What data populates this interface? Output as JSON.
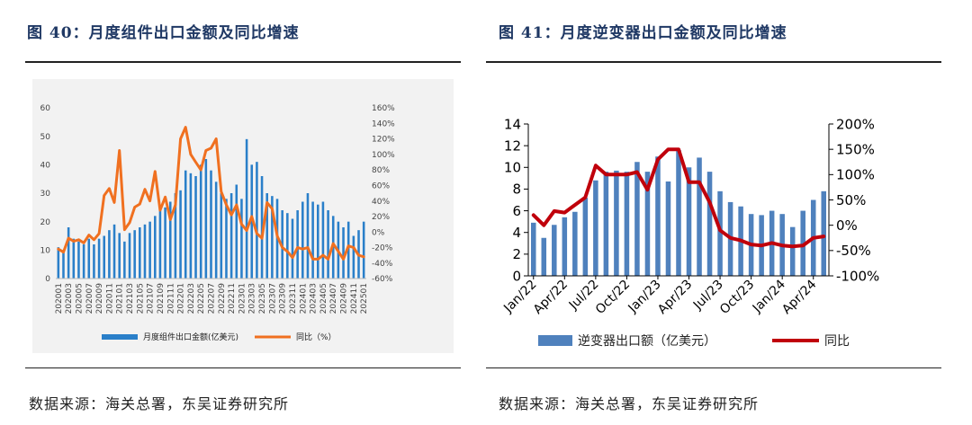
{
  "left": {
    "title": "图 40：月度组件出口金额及同比增速",
    "source": "数据来源：海关总署，东吴证券研究所"
  },
  "right": {
    "title": "图 41：月度逆变器出口金额及同比增速",
    "source": "数据来源：海关总署，东吴证券研究所"
  },
  "colors": {
    "bar_left": "#2a7fc9",
    "line_left": "#f07020",
    "bar_right": "#4f81bd",
    "line_right": "#c0000b",
    "title": "#1f3864"
  },
  "chart_data": [
    {
      "type": "bar+line",
      "title": "图 40：月度组件出口金额及同比增速",
      "categories": [
        "202001",
        "202002",
        "202003",
        "202004",
        "202005",
        "202006",
        "202007",
        "202008",
        "202009",
        "202010",
        "202011",
        "202012",
        "202101",
        "202102",
        "202103",
        "202104",
        "202105",
        "202106",
        "202107",
        "202108",
        "202109",
        "202110",
        "202111",
        "202112",
        "202201",
        "202202",
        "202203",
        "202204",
        "202205",
        "202206",
        "202207",
        "202208",
        "202209",
        "202210",
        "202211",
        "202212",
        "202301",
        "202302",
        "202303",
        "202304",
        "202305",
        "202306",
        "202307",
        "202308",
        "202309",
        "202310",
        "202311",
        "202312",
        "202401",
        "202402",
        "202403",
        "202404",
        "202405",
        "202406",
        "202407",
        "202408",
        "202409",
        "202410",
        "202411",
        "202412",
        "202501"
      ],
      "tick_labels": [
        "202001",
        "202003",
        "202005",
        "202007",
        "202009",
        "202011",
        "202101",
        "202103",
        "202105",
        "202107",
        "202109",
        "202111",
        "202201",
        "202203",
        "202205",
        "202207",
        "202209",
        "202211",
        "202301",
        "202303",
        "202305",
        "202307",
        "202309",
        "202311",
        "202401",
        "202403",
        "202405",
        "202407",
        "202409",
        "202411",
        "202501"
      ],
      "series": [
        {
          "name": "月度组件出口金额(亿美元)",
          "kind": "bar",
          "axis": "left",
          "values": [
            11,
            10,
            18,
            14,
            13,
            12,
            14,
            12,
            14,
            15,
            17,
            19,
            16,
            13,
            16,
            17,
            18,
            19,
            20,
            22,
            25,
            25,
            27,
            30,
            31,
            38,
            37,
            36,
            40,
            42,
            38,
            34,
            30,
            28,
            30,
            33,
            28,
            49,
            40,
            41,
            36,
            30,
            29,
            28,
            24,
            23,
            21,
            24,
            27,
            30,
            27,
            26,
            27,
            24,
            22,
            20,
            18,
            20,
            15,
            17,
            20
          ]
        },
        {
          "name": "同比（%）",
          "kind": "line",
          "axis": "right",
          "values": [
            -22,
            -26,
            -8,
            -12,
            -10,
            -14,
            -4,
            -10,
            -2,
            47,
            56,
            38,
            105,
            3,
            12,
            32,
            36,
            55,
            40,
            78,
            28,
            45,
            16,
            35,
            120,
            135,
            100,
            90,
            80,
            105,
            108,
            120,
            52,
            35,
            22,
            35,
            10,
            2,
            20,
            -2,
            -8,
            38,
            30,
            -5,
            -20,
            -25,
            -33,
            -20,
            -22,
            -20,
            -35,
            -35,
            -30,
            -35,
            -15,
            -25,
            -35,
            -18,
            -20,
            -30,
            -32
          ]
        }
      ],
      "ylim_left": [
        0,
        60
      ],
      "yticks_left": [
        "0",
        "10",
        "20",
        "30",
        "40",
        "50",
        "60"
      ],
      "ylim_right": [
        -60,
        160
      ],
      "yticks_right": [
        "-60%",
        "-40%",
        "-20%",
        "0%",
        "20%",
        "40%",
        "60%",
        "80%",
        "100%",
        "120%",
        "140%",
        "160%"
      ],
      "legend": [
        {
          "label": "月度组件出口金额(亿美元)",
          "kind": "bar"
        },
        {
          "label": "同比（%）",
          "kind": "line"
        }
      ],
      "legend_position": "bottom"
    },
    {
      "type": "bar+line",
      "title": "图 41：月度逆变器出口金额及同比增速",
      "categories": [
        "Jan/22",
        "Feb/22",
        "Mar/22",
        "Apr/22",
        "May/22",
        "Jun/22",
        "Jul/22",
        "Aug/22",
        "Sep/22",
        "Oct/22",
        "Nov/22",
        "Dec/22",
        "Jan/23",
        "Feb/23",
        "Mar/23",
        "Apr/23",
        "May/23",
        "Jun/23",
        "Jul/23",
        "Aug/23",
        "Sep/23",
        "Oct/23",
        "Nov/23",
        "Dec/23",
        "Jan/24",
        "Feb/24",
        "Mar/24",
        "Apr/24",
        "May/24"
      ],
      "tick_labels": [
        "Jan/22",
        "Apr/22",
        "Jul/22",
        "Oct/22",
        "Jan/23",
        "Apr/23",
        "Jul/23",
        "Oct/23",
        "Jan/24",
        "Apr/24"
      ],
      "series": [
        {
          "name": "逆变器出口额（亿美元）",
          "kind": "bar",
          "axis": "left",
          "values": [
            4.9,
            3.5,
            4.7,
            5.4,
            5.9,
            7.2,
            8.8,
            9.6,
            9.7,
            9.6,
            10.5,
            9.6,
            11.0,
            8.7,
            11.6,
            10.0,
            10.9,
            9.6,
            7.8,
            6.8,
            6.4,
            5.7,
            5.6,
            6.0,
            5.7,
            4.5,
            6.0,
            7.0,
            7.8
          ]
        },
        {
          "name": "同比",
          "kind": "line",
          "axis": "right",
          "values": [
            20,
            0,
            28,
            25,
            40,
            55,
            118,
            100,
            100,
            100,
            105,
            70,
            130,
            150,
            150,
            85,
            85,
            45,
            -10,
            -25,
            -30,
            -38,
            -40,
            -35,
            -40,
            -42,
            -40,
            -25,
            -22
          ]
        }
      ],
      "ylim_left": [
        0,
        14
      ],
      "yticks_left": [
        "0",
        "2",
        "4",
        "6",
        "8",
        "10",
        "12",
        "14"
      ],
      "ylim_right": [
        -100,
        200
      ],
      "yticks_right": [
        "-100%",
        "-50%",
        "0%",
        "50%",
        "100%",
        "150%",
        "200%"
      ],
      "legend": [
        {
          "label": "逆变器出口额（亿美元）",
          "kind": "bar"
        },
        {
          "label": "同比",
          "kind": "line"
        }
      ],
      "legend_position": "bottom"
    }
  ]
}
